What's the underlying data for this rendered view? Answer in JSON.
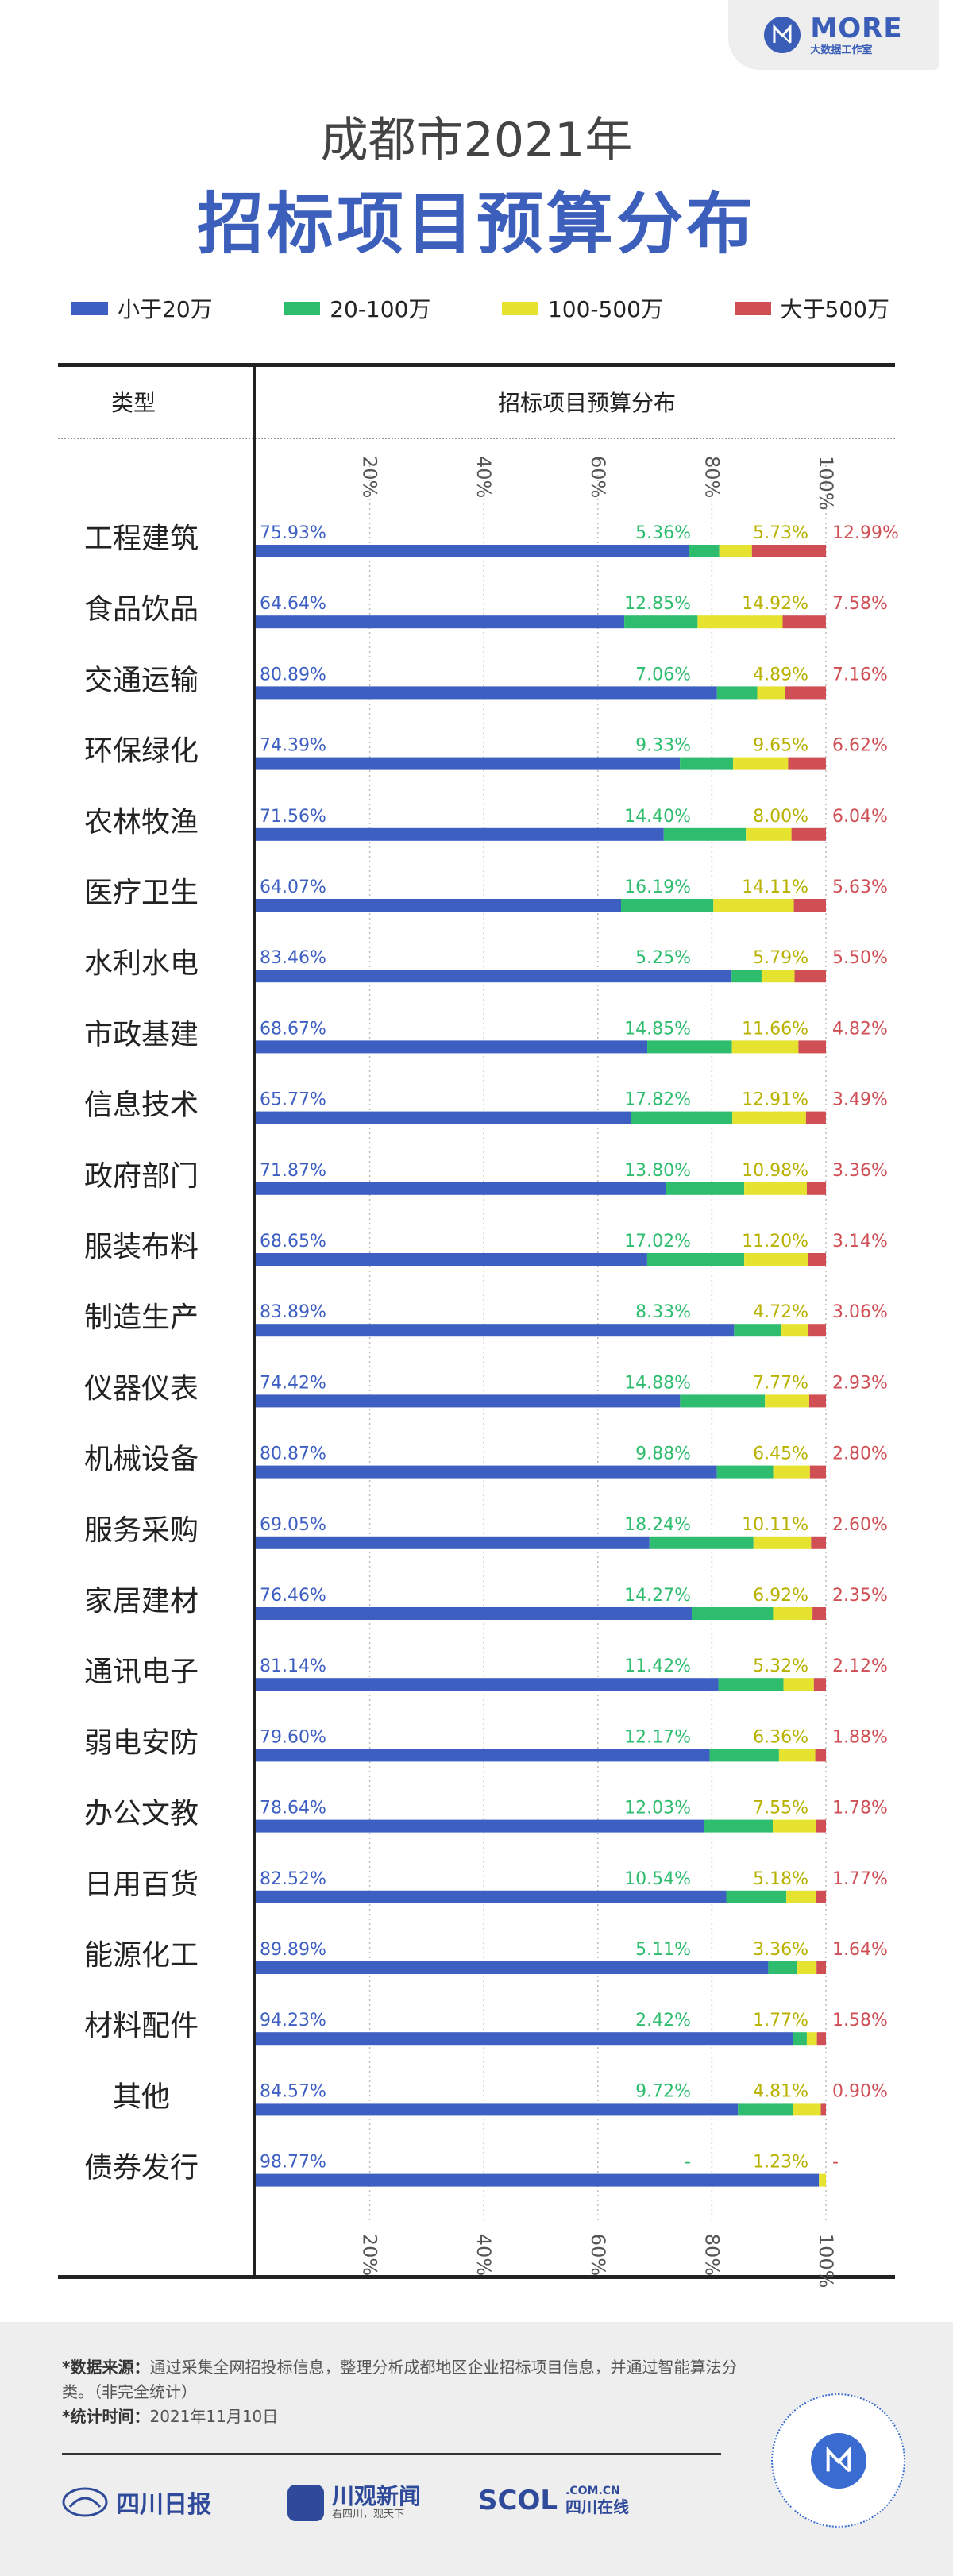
{
  "header": {
    "logo_text": "MORE",
    "logo_sub": "大数据工作室",
    "title_line1": "成都市2021年",
    "title_line2": "招标项目预算分布"
  },
  "legend": [
    {
      "label": "小于20万",
      "color": "#3d5fc2"
    },
    {
      "label": "20-100万",
      "color": "#2ebd6e"
    },
    {
      "label": "100-500万",
      "color": "#e6e330"
    },
    {
      "label": "大于500万",
      "color": "#cf4f55"
    }
  ],
  "table_header": {
    "type_label": "类型",
    "chart_label": "招标项目预算分布"
  },
  "chart_data": {
    "type": "bar",
    "orientation": "horizontal",
    "stacked": true,
    "percent_stacked": true,
    "categories": [
      "工程建筑",
      "食品饮品",
      "交通运输",
      "环保绿化",
      "农林牧渔",
      "医疗卫生",
      "水利水电",
      "市政基建",
      "信息技术",
      "政府部门",
      "服装布料",
      "制造生产",
      "仪器仪表",
      "机械设备",
      "服务采购",
      "家居建材",
      "通讯电子",
      "弱电安防",
      "办公文教",
      "日用百货",
      "能源化工",
      "材料配件",
      "其他",
      "债券发行"
    ],
    "series": [
      {
        "name": "小于20万",
        "color": "#3d5fc2",
        "values": [
          75.93,
          64.64,
          80.89,
          74.39,
          71.56,
          64.07,
          83.46,
          68.67,
          65.77,
          71.87,
          68.65,
          83.89,
          74.42,
          80.87,
          69.05,
          76.46,
          81.14,
          79.6,
          78.64,
          82.52,
          89.89,
          94.23,
          84.57,
          98.77
        ]
      },
      {
        "name": "20-100万",
        "color": "#2ebd6e",
        "values": [
          5.36,
          12.85,
          7.06,
          9.33,
          14.4,
          16.19,
          5.25,
          14.85,
          17.82,
          13.8,
          17.02,
          8.33,
          14.88,
          9.88,
          18.24,
          14.27,
          11.42,
          12.17,
          12.03,
          10.54,
          5.11,
          2.42,
          9.72,
          0
        ]
      },
      {
        "name": "100-500万",
        "color": "#e6e330",
        "values": [
          5.73,
          14.92,
          4.89,
          9.65,
          8.0,
          14.11,
          5.79,
          11.66,
          12.91,
          10.98,
          11.2,
          4.72,
          7.77,
          6.45,
          10.11,
          6.92,
          5.32,
          6.36,
          7.55,
          5.18,
          3.36,
          1.77,
          4.81,
          1.23
        ]
      },
      {
        "name": "大于500万",
        "color": "#cf4f55",
        "values": [
          12.99,
          7.58,
          7.16,
          6.62,
          6.04,
          5.63,
          5.5,
          4.82,
          3.49,
          3.36,
          3.14,
          3.06,
          2.93,
          2.8,
          2.6,
          2.35,
          2.12,
          1.88,
          1.78,
          1.77,
          1.64,
          1.58,
          0.9,
          0
        ]
      }
    ],
    "labels": [
      [
        "75.93%",
        "5.36%",
        "5.73%",
        "12.99%"
      ],
      [
        "64.64%",
        "12.85%",
        "14.92%",
        "7.58%"
      ],
      [
        "80.89%",
        "7.06%",
        "4.89%",
        "7.16%"
      ],
      [
        "74.39%",
        "9.33%",
        "9.65%",
        "6.62%"
      ],
      [
        "71.56%",
        "14.40%",
        "8.00%",
        "6.04%"
      ],
      [
        "64.07%",
        "16.19%",
        "14.11%",
        "5.63%"
      ],
      [
        "83.46%",
        "5.25%",
        "5.79%",
        "5.50%"
      ],
      [
        "68.67%",
        "14.85%",
        "11.66%",
        "4.82%"
      ],
      [
        "65.77%",
        "17.82%",
        "12.91%",
        "3.49%"
      ],
      [
        "71.87%",
        "13.80%",
        "10.98%",
        "3.36%"
      ],
      [
        "68.65%",
        "17.02%",
        "11.20%",
        "3.14%"
      ],
      [
        "83.89%",
        "8.33%",
        "4.72%",
        "3.06%"
      ],
      [
        "74.42%",
        "14.88%",
        "7.77%",
        "2.93%"
      ],
      [
        "80.87%",
        "9.88%",
        "6.45%",
        "2.80%"
      ],
      [
        "69.05%",
        "18.24%",
        "10.11%",
        "2.60%"
      ],
      [
        "76.46%",
        "14.27%",
        "6.92%",
        "2.35%"
      ],
      [
        "81.14%",
        "11.42%",
        "5.32%",
        "2.12%"
      ],
      [
        "79.60%",
        "12.17%",
        "6.36%",
        "1.88%"
      ],
      [
        "78.64%",
        "12.03%",
        "7.55%",
        "1.78%"
      ],
      [
        "82.52%",
        "10.54%",
        "5.18%",
        "1.77%"
      ],
      [
        "89.89%",
        "5.11%",
        "3.36%",
        "1.64%"
      ],
      [
        "94.23%",
        "2.42%",
        "1.77%",
        "1.58%"
      ],
      [
        "84.57%",
        "9.72%",
        "4.81%",
        "0.90%"
      ],
      [
        "98.77%",
        "-",
        "1.23%",
        "-"
      ]
    ],
    "x_ticks": [
      "20%",
      "40%",
      "60%",
      "80%",
      "100%"
    ],
    "x_tick_values": [
      20,
      40,
      60,
      80,
      100
    ],
    "xlim": [
      0,
      100
    ],
    "grid": "dotted vertical"
  },
  "footer": {
    "source_label": "*数据来源：",
    "source_text": "通过采集全网招投标信息，整理分析成都地区企业招标项目信息，并通过智能算法分类。（非完全统计）",
    "time_label": "*统计时间：",
    "time_text": "2021年11月10日",
    "logo1": "四川日报",
    "logo2": "川观新闻",
    "logo2_sub": "看四川，观天下",
    "logo3_main": "SCOL",
    "logo3_domain": ".COM.CN",
    "logo3_sub": "四川在线"
  }
}
